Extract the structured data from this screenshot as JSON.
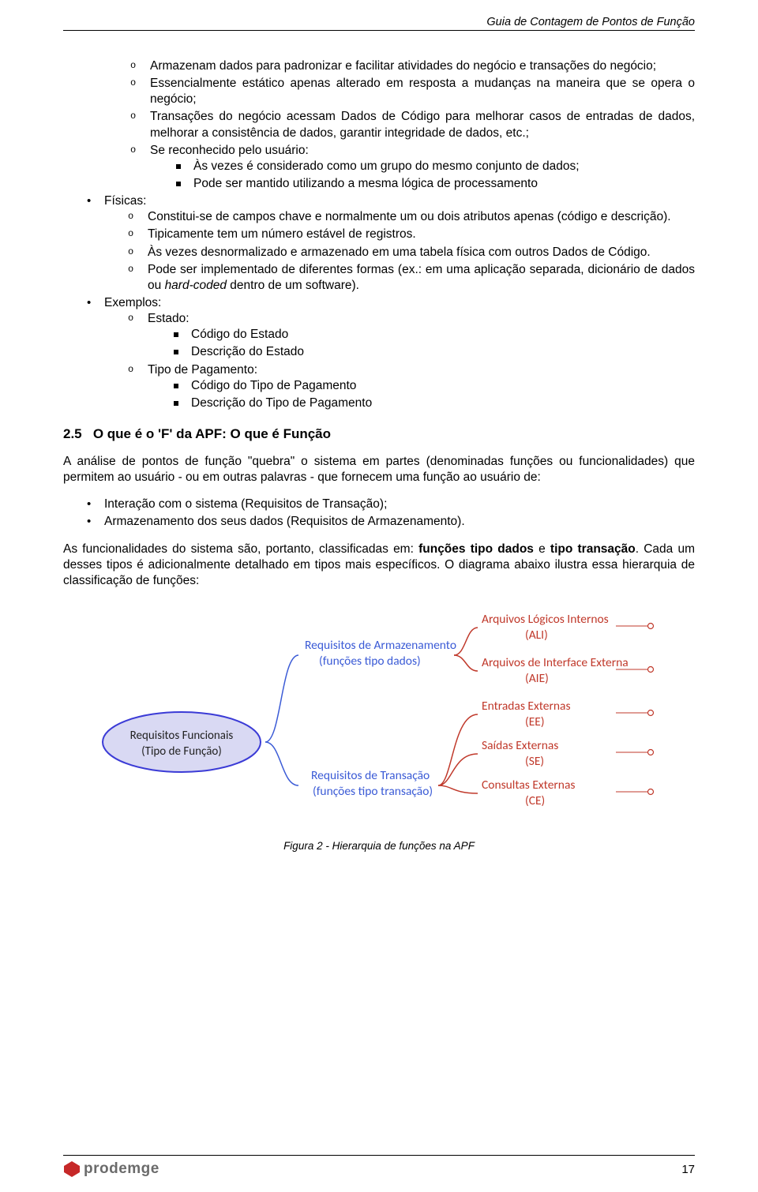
{
  "header": {
    "title": "Guia de Contagem de Pontos de Função"
  },
  "lists": {
    "topCircles": [
      "Armazenam dados para padronizar e facilitar atividades do negócio e transações do negócio;",
      "Essencialmente estático apenas alterado em resposta a mudanças na maneira que se opera o negócio;",
      "Transações do negócio acessam Dados de Código para melhorar casos de entradas de dados, melhorar a consistência de dados, garantir integridade de dados, etc.;",
      "Se reconhecido pelo usuário:"
    ],
    "seReconSquares": [
      "Às vezes é considerado como um grupo do mesmo conjunto de dados;",
      "Pode ser mantido utilizando a mesma lógica de processamento"
    ],
    "fisicasLabel": "Físicas:",
    "fisicasCircles": [
      "Constitui-se de campos chave e normalmente um ou dois atributos apenas (código e descrição).",
      "Tipicamente tem um número estável de registros.",
      "Às vezes desnormalizado e armazenado em uma tabela física com outros Dados de Código.",
      "Pode ser implementado de diferentes formas (ex.: em uma aplicação separada, dicionário de dados ou hard-coded dentro de um software)."
    ],
    "exemplosLabel": "Exemplos:",
    "exemplosCircles": [
      "Estado:",
      "Tipo de Pagamento:"
    ],
    "estadoSquares": [
      "Código do Estado",
      "Descrição do Estado"
    ],
    "tipoSquares": [
      "Código do Tipo de Pagamento",
      "Descrição do Tipo de Pagamento"
    ]
  },
  "section": {
    "number": "2.5",
    "title": "O que é o 'F' da APF: O que é Função"
  },
  "paragraphs": {
    "p1": "A análise de pontos de função \"quebra\" o sistema em partes (denominadas funções ou funcionalidades) que permitem ao usuário - ou em outras palavras - que fornecem uma função ao usuário de:",
    "p2items": [
      "Interação com o sistema (Requisitos de Transação);",
      "Armazenamento dos seus dados (Requisitos de Armazenamento)."
    ],
    "p3_a": "As funcionalidades do sistema são, portanto, classificadas em: ",
    "p3_b1": "funções tipo dados",
    "p3_c": " e ",
    "p3_b2": "tipo transação",
    "p3_d": ". Cada um desses tipos é adicionalmente detalhado em tipos mais específicos. O diagrama abaixo ilustra essa hierarquia de classificação de funções:"
  },
  "diagram": {
    "root": {
      "line1": "Requisitos Funcionais",
      "line2": "(Tipo de Função)"
    },
    "mid1": {
      "line1": "Requisitos de Armazenamento",
      "line2": "(funções tipo dados)"
    },
    "mid2": {
      "line1": "Requisitos de Transação",
      "line2": "(funções tipo transação)"
    },
    "leaves": [
      {
        "line1": "Arquivos Lógicos Internos",
        "line2": "(ALI)"
      },
      {
        "line1": "Arquivos de Interface Externa",
        "line2": "(AIE)"
      },
      {
        "line1": "Entradas Externas",
        "line2": "(EE)"
      },
      {
        "line1": "Saídas Externas",
        "line2": "(SE)"
      },
      {
        "line1": "Consultas Externas",
        "line2": "(CE)"
      }
    ],
    "colors": {
      "rootFill": "#d9d9f3",
      "rootStroke": "#3b3bd6",
      "midText": "#3b5bd6",
      "midBrace": "#3b5bd6",
      "leafText": "#c0392b",
      "leafBrace": "#c0392b",
      "rootText": "#222222"
    },
    "caption": "Figura 2 - Hierarquia de funções na APF"
  },
  "footer": {
    "page": "17",
    "logoText": "prodemge",
    "logoColor": "#6b6b6b",
    "logoAccent": "#c62828"
  }
}
